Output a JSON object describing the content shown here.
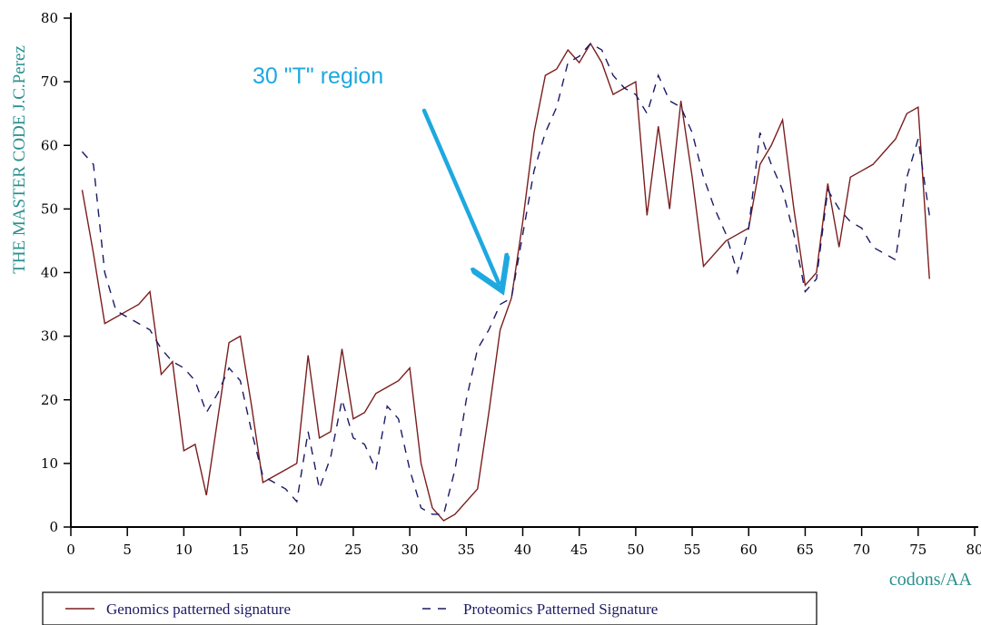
{
  "chart_data": {
    "type": "line",
    "title": "",
    "ylabel": "THE MASTER CODE J.C.Perez",
    "xlabel": "codons/AA",
    "xlim": [
      0,
      80
    ],
    "ylim": [
      0,
      80
    ],
    "xticks": [
      0,
      5,
      10,
      15,
      20,
      25,
      30,
      35,
      40,
      45,
      50,
      55,
      60,
      65,
      70,
      75,
      80
    ],
    "yticks": [
      0,
      10,
      20,
      30,
      40,
      50,
      60,
      70,
      80
    ],
    "grid": false,
    "legend_position": "bottom",
    "annotation": {
      "text": "30 \"T\" region",
      "points_to": [
        38,
        38
      ]
    },
    "x": [
      1,
      2,
      3,
      4,
      5,
      6,
      7,
      8,
      9,
      10,
      11,
      12,
      13,
      14,
      15,
      16,
      17,
      18,
      19,
      20,
      21,
      22,
      23,
      24,
      25,
      26,
      27,
      28,
      29,
      30,
      31,
      32,
      33,
      34,
      35,
      36,
      37,
      38,
      39,
      40,
      41,
      42,
      43,
      44,
      45,
      46,
      47,
      48,
      49,
      50,
      51,
      52,
      53,
      54,
      55,
      56,
      57,
      58,
      59,
      60,
      61,
      62,
      63,
      64,
      65,
      66,
      67,
      68,
      69,
      70,
      71,
      72,
      73,
      74,
      75,
      76
    ],
    "series": [
      {
        "name": "Genomics patterned signature",
        "color": "#7a1e1e",
        "style": "solid",
        "values": [
          53,
          43,
          32,
          33,
          34,
          35,
          37,
          24,
          26,
          12,
          13,
          5,
          17,
          29,
          30,
          19,
          7,
          8,
          9,
          10,
          27,
          14,
          15,
          28,
          17,
          18,
          21,
          22,
          23,
          25,
          10,
          3,
          1,
          2,
          4,
          6,
          18,
          31,
          36,
          48,
          62,
          71,
          72,
          75,
          73,
          76,
          73,
          68,
          69,
          70,
          49,
          63,
          50,
          67,
          55,
          41,
          43,
          45,
          46,
          47,
          57,
          60,
          64,
          50,
          38,
          40,
          54,
          44,
          55,
          56,
          57,
          59,
          61,
          65,
          66,
          39
        ]
      },
      {
        "name": "Proteomics Patterned Signature",
        "color": "#1a1a66",
        "style": "dashed",
        "values": [
          59,
          57,
          40,
          34,
          33,
          32,
          31,
          28,
          26,
          25,
          23,
          18,
          21,
          25,
          23,
          15,
          8,
          7,
          6,
          4,
          15,
          6,
          11,
          20,
          14,
          13,
          9,
          19,
          17,
          9,
          3,
          2,
          2,
          9,
          20,
          28,
          31,
          35,
          36,
          46,
          56,
          62,
          66,
          73,
          74,
          76,
          75,
          71,
          69,
          68,
          65,
          71,
          67,
          66,
          62,
          55,
          50,
          46,
          40,
          47,
          62,
          57,
          53,
          46,
          37,
          39,
          53,
          50,
          48,
          47,
          44,
          43,
          42,
          55,
          61,
          49
        ]
      }
    ]
  }
}
